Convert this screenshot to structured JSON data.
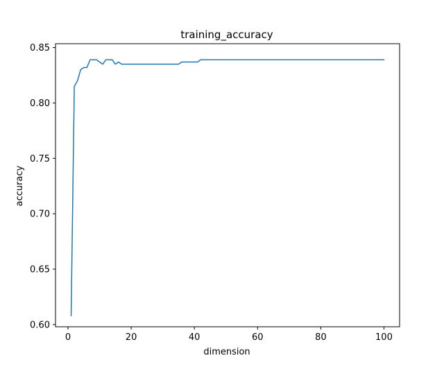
{
  "chart_data": {
    "type": "line",
    "title": "training_accuracy",
    "xlabel": "dimension",
    "ylabel": "accuracy",
    "xlim": [
      -3.95,
      104.95
    ],
    "ylim": [
      0.598,
      0.8535
    ],
    "x_ticks": [
      0,
      20,
      40,
      60,
      80,
      100
    ],
    "x_tick_labels": [
      "0",
      "20",
      "40",
      "60",
      "80",
      "100"
    ],
    "y_ticks": [
      0.6,
      0.65,
      0.7,
      0.75,
      0.8,
      0.85
    ],
    "y_tick_labels": [
      "0.60",
      "0.65",
      "0.70",
      "0.75",
      "0.80",
      "0.85"
    ],
    "grid": false,
    "legend": "none",
    "series": [
      {
        "color": "#1f77b4",
        "x": [
          1,
          2,
          3,
          4,
          5,
          6,
          7,
          8,
          9,
          10,
          11,
          12,
          13,
          14,
          15,
          16,
          17,
          18,
          19,
          20,
          21,
          22,
          23,
          24,
          25,
          26,
          27,
          28,
          29,
          30,
          31,
          32,
          33,
          34,
          35,
          36,
          37,
          38,
          39,
          40,
          41,
          42,
          43,
          44,
          45,
          46,
          47,
          48,
          49,
          50,
          51,
          52,
          53,
          54,
          55,
          56,
          57,
          58,
          59,
          60,
          61,
          62,
          63,
          64,
          65,
          66,
          67,
          68,
          69,
          70,
          71,
          72,
          73,
          74,
          75,
          76,
          77,
          78,
          79,
          80,
          81,
          82,
          83,
          84,
          85,
          86,
          87,
          88,
          89,
          90,
          91,
          92,
          93,
          94,
          95,
          96,
          97,
          98,
          99,
          100
        ],
        "y": [
          0.608,
          0.815,
          0.82,
          0.83,
          0.832,
          0.832,
          0.839,
          0.839,
          0.839,
          0.837,
          0.835,
          0.839,
          0.839,
          0.839,
          0.835,
          0.837,
          0.835,
          0.835,
          0.835,
          0.835,
          0.835,
          0.835,
          0.835,
          0.835,
          0.835,
          0.835,
          0.835,
          0.835,
          0.835,
          0.835,
          0.835,
          0.835,
          0.835,
          0.835,
          0.835,
          0.837,
          0.837,
          0.837,
          0.837,
          0.837,
          0.837,
          0.839,
          0.839,
          0.839,
          0.839,
          0.839,
          0.839,
          0.839,
          0.839,
          0.839,
          0.839,
          0.839,
          0.839,
          0.839,
          0.839,
          0.839,
          0.839,
          0.839,
          0.839,
          0.839,
          0.839,
          0.839,
          0.839,
          0.839,
          0.839,
          0.839,
          0.839,
          0.839,
          0.839,
          0.839,
          0.839,
          0.839,
          0.839,
          0.839,
          0.839,
          0.839,
          0.839,
          0.839,
          0.839,
          0.839,
          0.839,
          0.839,
          0.839,
          0.839,
          0.839,
          0.839,
          0.839,
          0.839,
          0.839,
          0.839,
          0.839,
          0.839,
          0.839,
          0.839,
          0.839,
          0.839,
          0.839,
          0.839,
          0.839,
          0.839
        ]
      }
    ]
  }
}
